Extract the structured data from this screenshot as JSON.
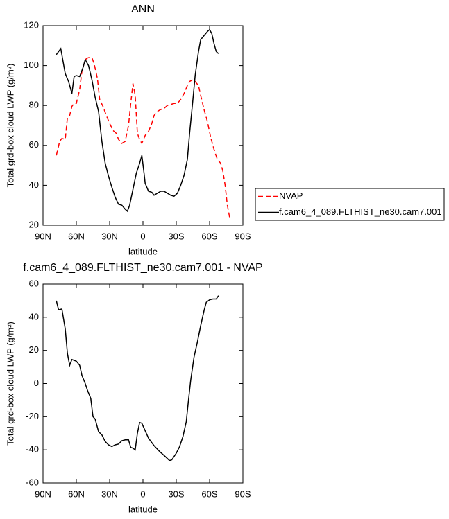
{
  "chart_data": [
    {
      "type": "line",
      "title": "ANN",
      "x_label": "latitude",
      "y_label": "Total grd-box cloud LWP (g/m²)",
      "xlim": [
        90,
        -90
      ],
      "ylim": [
        20,
        120
      ],
      "xticks": [
        {
          "value": 90,
          "label": "90N"
        },
        {
          "value": 60,
          "label": "60N"
        },
        {
          "value": 30,
          "label": "30N"
        },
        0,
        {
          "value": -30,
          "label": "30S"
        },
        {
          "value": -60,
          "label": "60S"
        },
        {
          "value": -90,
          "label": "90S"
        }
      ],
      "yticks": [
        20,
        40,
        60,
        80,
        100,
        120
      ],
      "legend": "right",
      "series": [
        {
          "name": "NVAP",
          "color": "#ff0000",
          "style": "dashed",
          "x": [
            78,
            75,
            73,
            70,
            68,
            66,
            64,
            62,
            60,
            57,
            55,
            53,
            51,
            49,
            46,
            44,
            41,
            39,
            36,
            33,
            30,
            27,
            24,
            22,
            19,
            16,
            13,
            11,
            9,
            7,
            5,
            3,
            1,
            -2,
            -5,
            -8,
            -10,
            -13,
            -16,
            -19,
            -22,
            -25,
            -28,
            -31,
            -34,
            -37,
            -40,
            -42,
            -45,
            -47,
            -50,
            -52,
            -55,
            -58,
            -61,
            -64,
            -67,
            -70,
            -72,
            -74,
            -76,
            -78
          ],
          "values": [
            55,
            62,
            63.5,
            63,
            74,
            75,
            79.5,
            81,
            81,
            88,
            97,
            101,
            103.5,
            104,
            104,
            101,
            93.5,
            83,
            79.5,
            75,
            71,
            67.5,
            66,
            63,
            61,
            62,
            70,
            81,
            91,
            85,
            66,
            63,
            61,
            65,
            67,
            71,
            75,
            77,
            78,
            78.5,
            80,
            80.5,
            81,
            81,
            83,
            86,
            90,
            92,
            93,
            92,
            90,
            85,
            78,
            72,
            64,
            58,
            53,
            51,
            47,
            40,
            30,
            24
          ]
        },
        {
          "name": "f.cam6_4_089.FLTHIST_ne30.cam7.001",
          "color": "#000000",
          "style": "solid",
          "x": [
            78,
            74,
            70,
            67,
            64,
            62,
            60,
            57,
            54,
            52,
            49,
            46,
            43,
            40,
            37,
            34,
            31,
            28,
            25,
            22,
            19,
            16,
            14,
            12,
            9,
            6,
            3,
            1,
            -1,
            -2,
            -5,
            -8,
            -10,
            -13,
            -16,
            -19,
            -22,
            -25,
            -28,
            -31,
            -34,
            -37,
            -40,
            -42,
            -45,
            -47,
            -50,
            -52,
            -55,
            -58,
            -60,
            -62,
            -64,
            -66,
            -68
          ],
          "values": [
            105.5,
            108.5,
            96,
            92,
            86,
            94.5,
            95,
            94.5,
            99,
            103,
            100,
            93,
            84,
            77,
            62,
            51,
            44.5,
            39,
            34,
            30.5,
            30,
            28,
            27,
            30,
            38,
            46,
            51,
            55,
            46,
            41,
            37,
            36.5,
            35,
            36,
            37,
            37,
            36,
            35,
            34.5,
            36,
            40,
            45,
            53,
            66,
            83,
            95,
            107,
            113,
            115,
            117,
            118,
            116,
            111,
            107,
            106
          ]
        }
      ]
    },
    {
      "type": "line",
      "title": "f.cam6_4_089.FLTHIST_ne30.cam7.001 - NVAP",
      "x_label": "latitude",
      "y_label": "Total grd-box cloud LWP (g/m²)",
      "xlim": [
        90,
        -90
      ],
      "ylim": [
        -60,
        60
      ],
      "xticks": [
        {
          "value": 90,
          "label": "90N"
        },
        {
          "value": 60,
          "label": "60N"
        },
        {
          "value": 30,
          "label": "30N"
        },
        0,
        {
          "value": -30,
          "label": "30S"
        },
        {
          "value": -60,
          "label": "60S"
        },
        {
          "value": -90,
          "label": "90S"
        }
      ],
      "yticks": [
        -60,
        -40,
        -20,
        0,
        20,
        40,
        60
      ],
      "series": [
        {
          "color": "#000000",
          "style": "solid",
          "x": [
            78,
            76,
            73,
            70,
            68,
            66,
            64,
            62,
            60,
            57,
            55,
            52,
            50,
            47,
            45,
            43,
            40,
            37,
            34,
            31,
            28,
            25,
            22,
            19,
            16,
            13,
            11,
            9,
            7,
            5,
            3,
            1,
            -1,
            -5,
            -10,
            -15,
            -20,
            -24,
            -26,
            -30,
            -33,
            -36,
            -39,
            -41,
            -43,
            -46,
            -49,
            -52,
            -55,
            -57,
            -60,
            -63,
            -66,
            -68
          ],
          "values": [
            50,
            44.5,
            45,
            33,
            18,
            11,
            14.5,
            14,
            13.5,
            11,
            5,
            0,
            -4,
            -9,
            -20,
            -21.5,
            -29,
            -31,
            -35,
            -37,
            -38,
            -37,
            -36.5,
            -34.5,
            -34,
            -34,
            -38.5,
            -39,
            -40,
            -30,
            -23.5,
            -24,
            -27,
            -33,
            -37.5,
            -41,
            -44,
            -46.5,
            -46,
            -42,
            -38,
            -32,
            -23,
            -10,
            2,
            16,
            25,
            35,
            44,
            49,
            50.5,
            51,
            51,
            53
          ]
        }
      ]
    }
  ]
}
